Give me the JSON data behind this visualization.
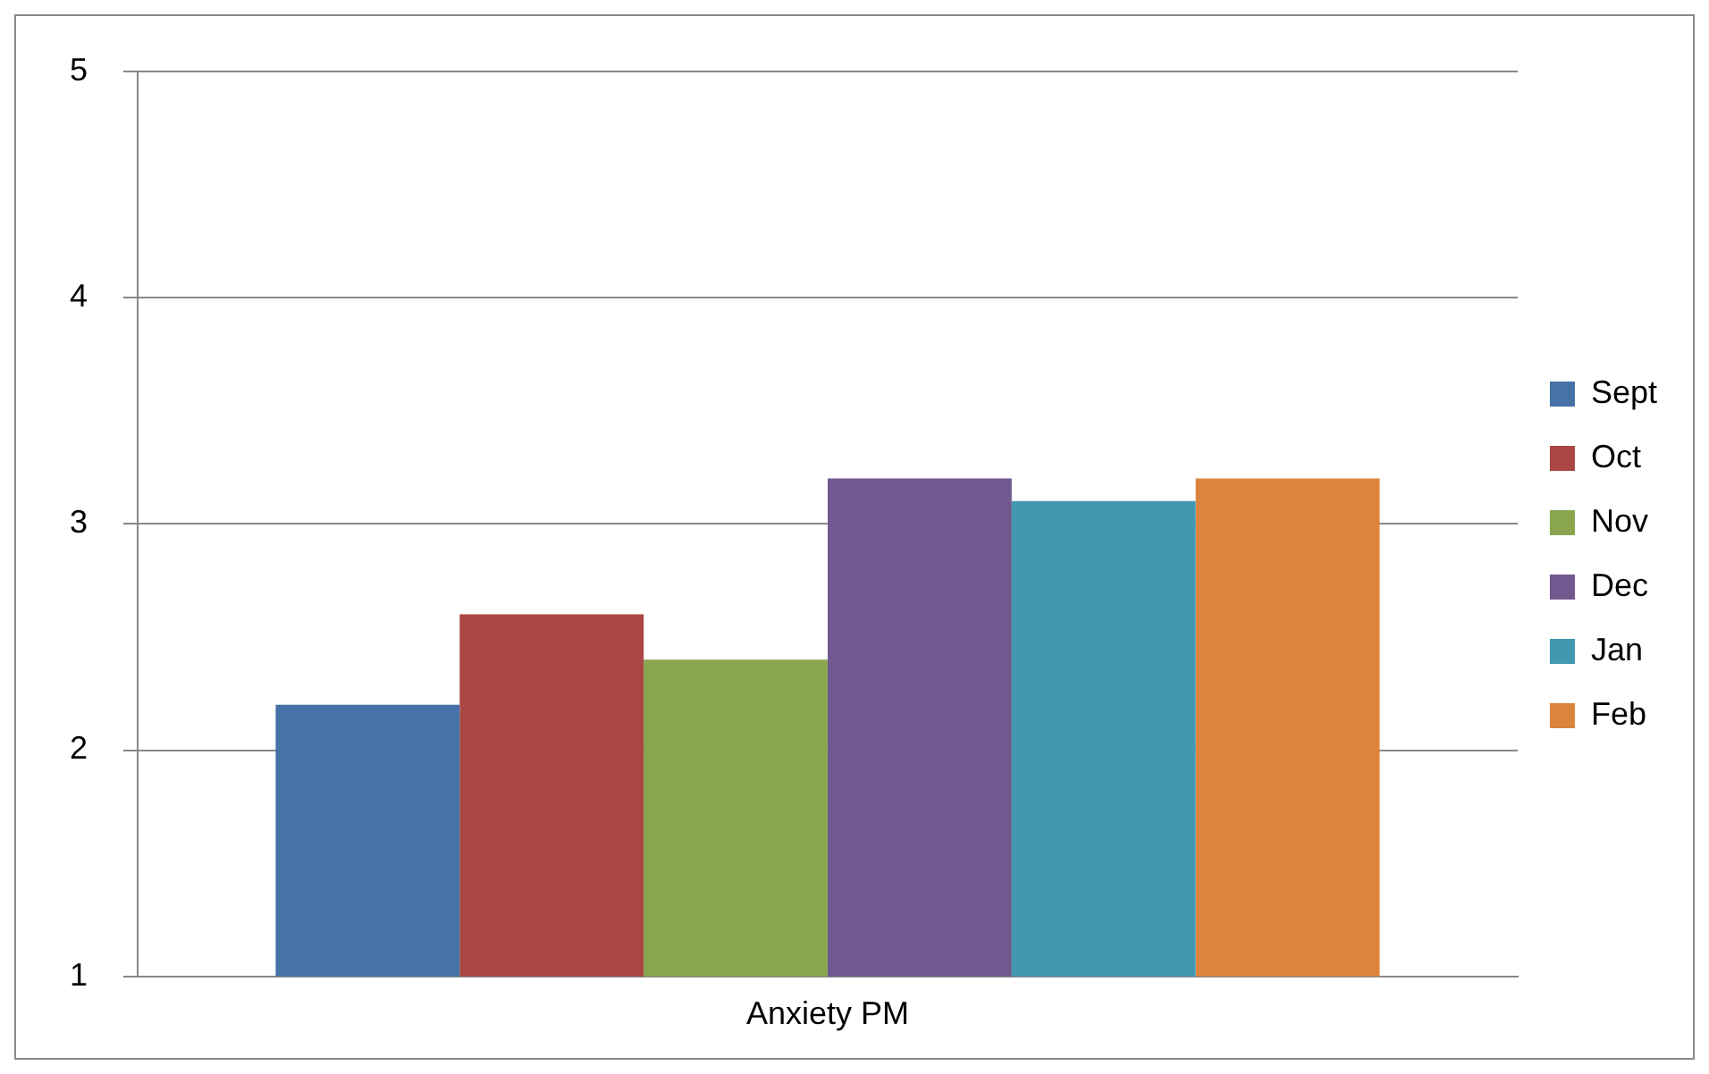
{
  "chart_data": {
    "type": "bar",
    "categories": [
      "Anxiety PM"
    ],
    "series": [
      {
        "name": "Sept",
        "color": "#4572a7",
        "values": [
          2.2
        ]
      },
      {
        "name": "Oct",
        "color": "#aa4643",
        "values": [
          2.6
        ]
      },
      {
        "name": "Nov",
        "color": "#89a54e",
        "values": [
          2.4
        ]
      },
      {
        "name": "Dec",
        "color": "#71588f",
        "values": [
          3.2
        ]
      },
      {
        "name": "Jan",
        "color": "#4198af",
        "values": [
          3.1
        ]
      },
      {
        "name": "Feb",
        "color": "#db843d",
        "values": [
          3.2
        ]
      }
    ],
    "ylim": [
      1,
      5
    ],
    "yticks": [
      1,
      2,
      3,
      4,
      5
    ],
    "grid": "y",
    "legend": "right"
  }
}
